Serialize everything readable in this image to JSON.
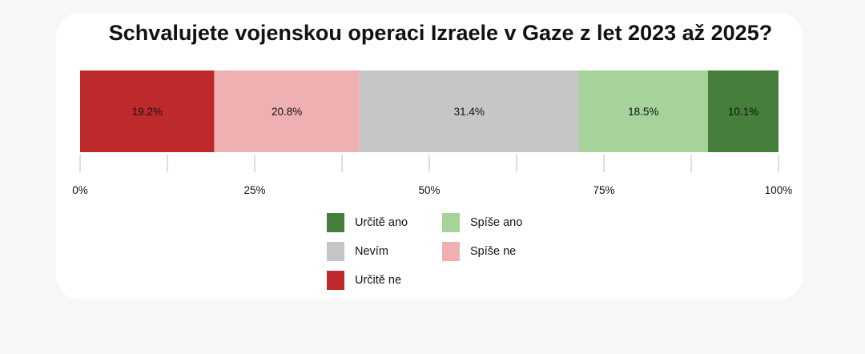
{
  "chart_data": {
    "type": "bar",
    "orientation": "horizontal-stacked",
    "title": "Schvalujete vojenskou operaci Izraele v Gaze z let 2023 až 2025?",
    "xlim": [
      0,
      100
    ],
    "x_ticks": [
      "0%",
      "25%",
      "50%",
      "75%",
      "100%"
    ],
    "segments": [
      {
        "name": "Určitě ne",
        "value": 19.2,
        "label": "19.2%",
        "color": "#be2a2c"
      },
      {
        "name": "Spíše ne",
        "value": 20.8,
        "label": "20.8%",
        "color": "#efb0b1"
      },
      {
        "name": "Nevím",
        "value": 31.4,
        "label": "31.4%",
        "color": "#c6c6c6"
      },
      {
        "name": "Spíše ano",
        "value": 18.5,
        "label": "18.5%",
        "color": "#a5d39a"
      },
      {
        "name": "Určitě ano",
        "value": 10.1,
        "label": "10.1%",
        "color": "#467f3c"
      }
    ],
    "legend": [
      {
        "name": "Určitě ano",
        "color": "#467f3c"
      },
      {
        "name": "Spíše ano",
        "color": "#a5d39a"
      },
      {
        "name": "Nevím",
        "color": "#c6c6c6"
      },
      {
        "name": "Spíše ne",
        "color": "#efb0b1"
      },
      {
        "name": "Určitě ne",
        "color": "#be2a2c"
      }
    ],
    "legend_placement": "bottom"
  }
}
